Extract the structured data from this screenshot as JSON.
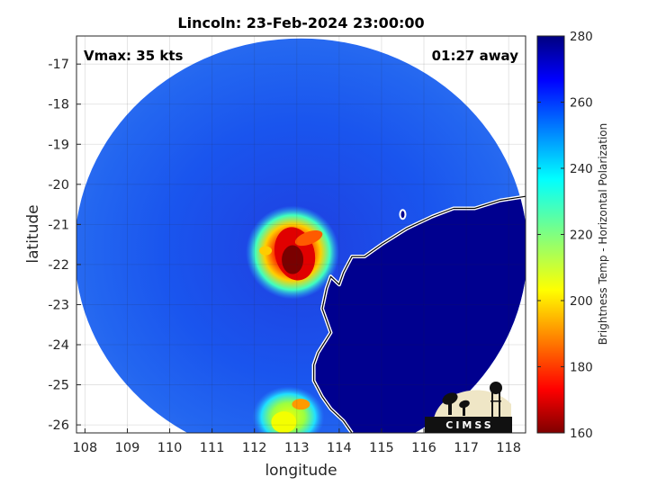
{
  "chart_data": {
    "type": "heatmap",
    "title": "Lincoln: 23-Feb-2024 23:00:00",
    "annotations": {
      "left": "Vmax: 35 kts",
      "right": "01:27 away"
    },
    "xlabel": "longitude",
    "ylabel": "latitude",
    "xlim": [
      107.8,
      118.4
    ],
    "ylim": [
      -26.2,
      -16.3
    ],
    "xticks": [
      108,
      109,
      110,
      111,
      112,
      113,
      114,
      115,
      116,
      117,
      118
    ],
    "yticks": [
      -17,
      -18,
      -19,
      -20,
      -21,
      -22,
      -23,
      -24,
      -25,
      -26
    ],
    "grid": true,
    "colorbar": {
      "label": "Brightness Temp - Horizontal Polarization",
      "range": [
        160,
        280
      ],
      "ticks": [
        280,
        260,
        240,
        220,
        200,
        180,
        160
      ],
      "colormap": "jet"
    },
    "features": {
      "swath_center": [
        113.1,
        -21.3
      ],
      "storm_core": [
        112.9,
        -21.7
      ],
      "coastline": [
        [
          118.4,
          -20.3
        ],
        [
          117.8,
          -20.4
        ],
        [
          117.2,
          -20.6
        ],
        [
          116.7,
          -20.6
        ],
        [
          116.2,
          -20.8
        ],
        [
          115.6,
          -21.1
        ],
        [
          115.0,
          -21.5
        ],
        [
          114.6,
          -21.8
        ],
        [
          114.3,
          -21.8
        ],
        [
          114.1,
          -22.2
        ],
        [
          114.0,
          -22.5
        ],
        [
          113.8,
          -22.3
        ],
        [
          113.7,
          -22.6
        ],
        [
          113.6,
          -23.1
        ],
        [
          113.8,
          -23.7
        ],
        [
          113.5,
          -24.2
        ],
        [
          113.4,
          -24.5
        ],
        [
          113.4,
          -24.9
        ],
        [
          113.6,
          -25.3
        ],
        [
          113.8,
          -25.6
        ],
        [
          114.1,
          -25.9
        ],
        [
          114.3,
          -26.2
        ]
      ]
    },
    "logo": "CIMSS"
  }
}
